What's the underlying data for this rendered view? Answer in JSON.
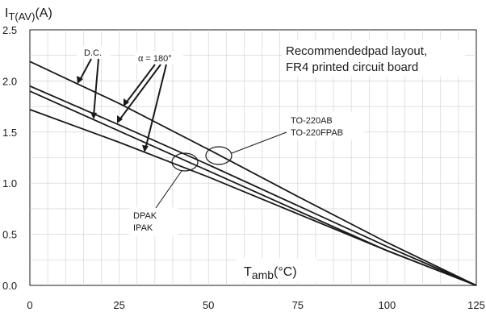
{
  "chart_data": {
    "type": "line",
    "y_axis": {
      "label_main": "I",
      "label_sub": "T(AV)",
      "label_unit": "(A)",
      "range": [
        0.0,
        2.5
      ],
      "ticks": [
        "0.0",
        "0.5",
        "1.0",
        "1.5",
        "2.0",
        "2.5"
      ]
    },
    "x_axis": {
      "label_main": "T",
      "label_sub": "amb",
      "label_unit": "(°C)",
      "range": [
        0,
        125
      ],
      "ticks": [
        "0",
        "25",
        "50",
        "75",
        "100",
        "125"
      ]
    },
    "grid": true,
    "series": [
      {
        "x": [
          0,
          25,
          50,
          75,
          100,
          125
        ],
        "y": [
          2.19,
          1.78,
          1.33,
          0.87,
          0.42,
          0.0
        ]
      },
      {
        "x": [
          0,
          25,
          50,
          75,
          100,
          125
        ],
        "y": [
          1.95,
          1.57,
          1.18,
          0.78,
          0.38,
          0.0
        ]
      },
      {
        "x": [
          0,
          25,
          50,
          75,
          100,
          125
        ],
        "y": [
          1.9,
          1.51,
          1.12,
          0.73,
          0.34,
          0.0
        ]
      },
      {
        "x": [
          0,
          25,
          50,
          75,
          100,
          125
        ],
        "y": [
          1.72,
          1.4,
          1.06,
          0.7,
          0.34,
          0.0
        ]
      }
    ],
    "annotations": {
      "dc": "D.C.",
      "alpha": "α = 180°",
      "note_line1": "Recommendedpad layout,",
      "note_line2": "FR4 printed circuit board",
      "to220_line1": "TO-220AB",
      "to220_line2": "TO-220FPAB",
      "dpak_line1": "DPAK",
      "dpak_line2": "IPAK"
    }
  }
}
